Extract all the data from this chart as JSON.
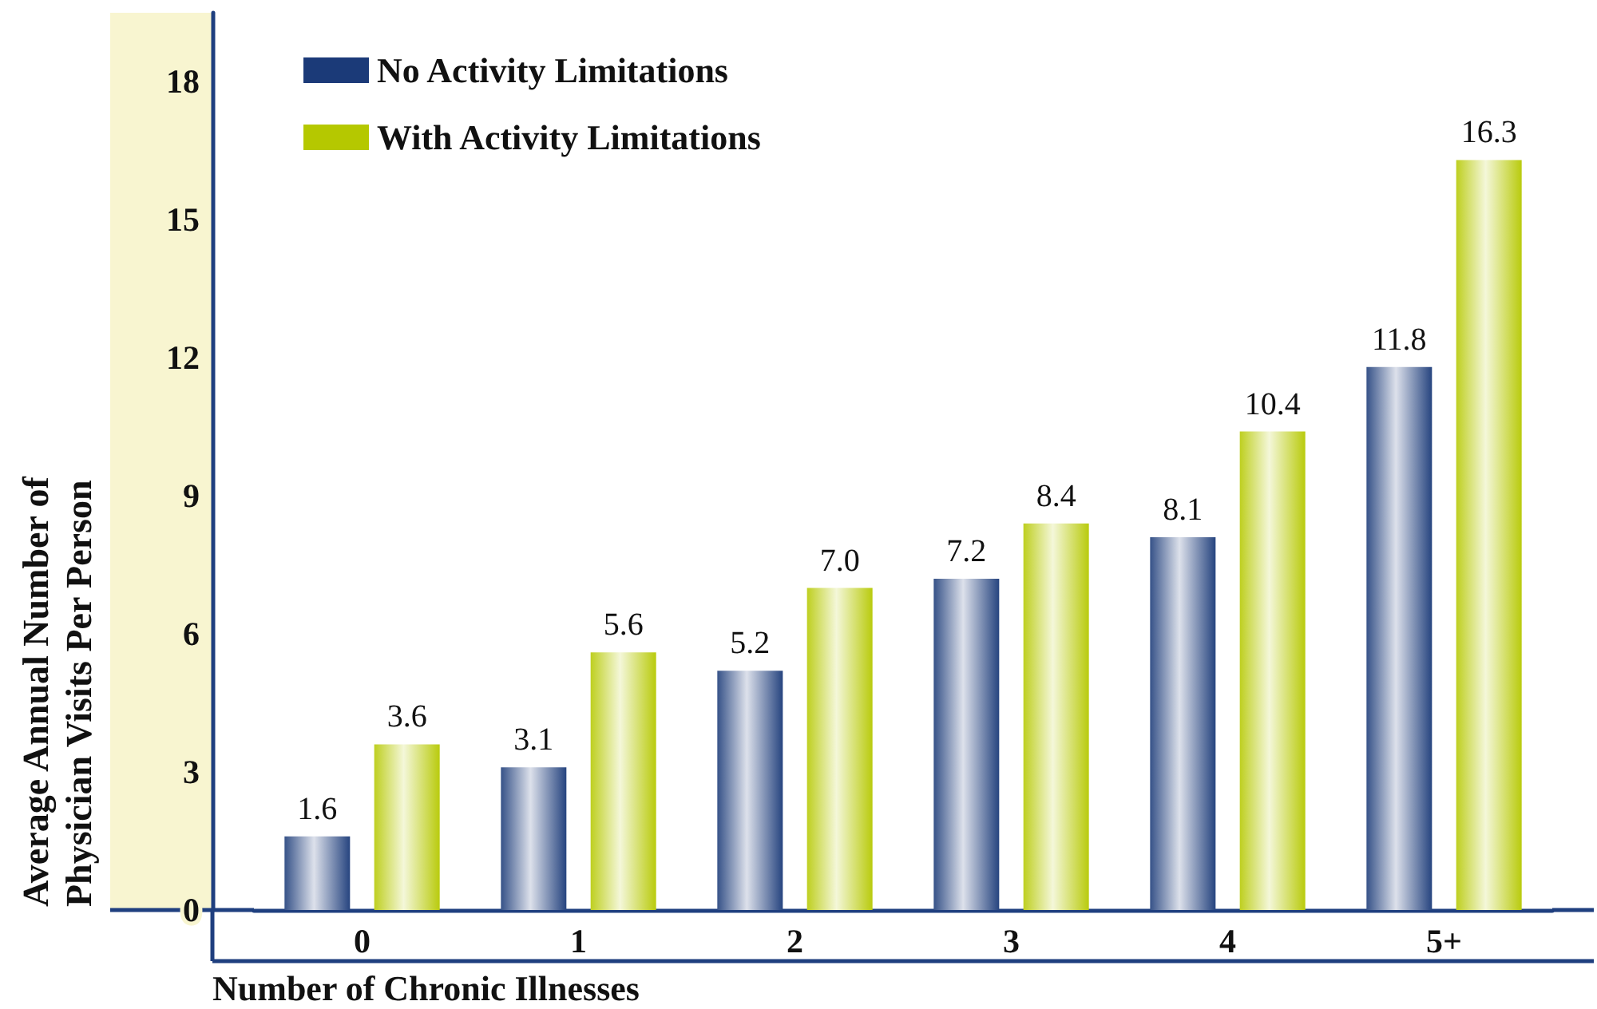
{
  "chart_data": {
    "type": "bar",
    "categories": [
      "0",
      "1",
      "2",
      "3",
      "4",
      "5+"
    ],
    "series": [
      {
        "name": "No Activity Limitations",
        "color": "#1b3a78",
        "values": [
          1.6,
          3.1,
          5.2,
          7.2,
          8.1,
          11.8
        ],
        "value_labels": [
          "1.6",
          "3.1",
          "5.2",
          "7.2",
          "8.1",
          "11.8"
        ]
      },
      {
        "name": "With Activity Limitations",
        "color": "#b5c800",
        "values": [
          3.6,
          5.6,
          7.0,
          8.4,
          10.4,
          16.3
        ],
        "value_labels": [
          "3.6",
          "5.6",
          "7.0",
          "8.4",
          "10.4",
          "16.3"
        ]
      }
    ],
    "xlabel": "Number of Chronic Illnesses",
    "ylabel": "Average Annual Number of\nPhysician Visits Per Person",
    "ylim": [
      0,
      19.5
    ],
    "yticks": [
      0,
      3,
      6,
      9,
      12,
      15,
      18
    ],
    "grid": false,
    "legend": "top left"
  }
}
